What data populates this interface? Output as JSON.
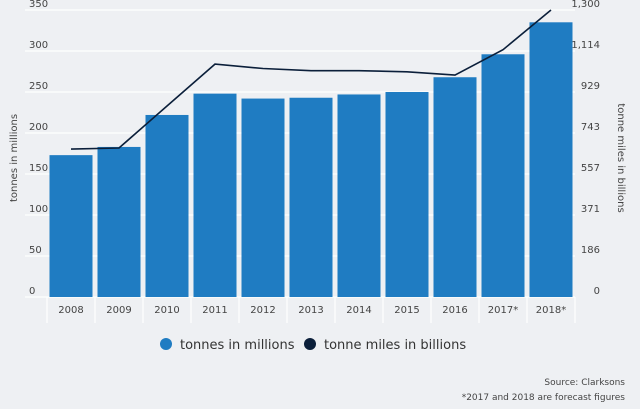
{
  "chart_data": {
    "type": "bar",
    "categories": [
      "2008",
      "2009",
      "2010",
      "2011",
      "2012",
      "2013",
      "2014",
      "2015",
      "2016",
      "2017*",
      "2018*"
    ],
    "series": [
      {
        "name": "tonnes in millions",
        "type": "bar",
        "axis": "left",
        "color": "#1f7cc2",
        "values": [
          173,
          183,
          222,
          248,
          242,
          243,
          247,
          250,
          268,
          296,
          335
        ]
      },
      {
        "name": "tonne miles in billions",
        "type": "line",
        "axis": "right",
        "color": "#0b1f3a",
        "values": [
          670,
          675,
          865,
          1055,
          1035,
          1025,
          1025,
          1020,
          1005,
          1120,
          1300
        ]
      }
    ],
    "ylabel": "tonnes in millions",
    "ylim": [
      0,
      350
    ],
    "yticks": [
      "0",
      "50",
      "100",
      "150",
      "200",
      "250",
      "300",
      "350"
    ],
    "y2label": "tonne miles in billions",
    "y2lim": [
      0,
      1300
    ],
    "y2ticks": [
      "0",
      "186",
      "371",
      "557",
      "743",
      "929",
      "1,114",
      "1,300"
    ],
    "grid": true,
    "legend_position": "bottom-center"
  },
  "footnotes": {
    "source": "Source: Clarksons",
    "forecast": "*2017 and 2018 are forecast figures"
  }
}
